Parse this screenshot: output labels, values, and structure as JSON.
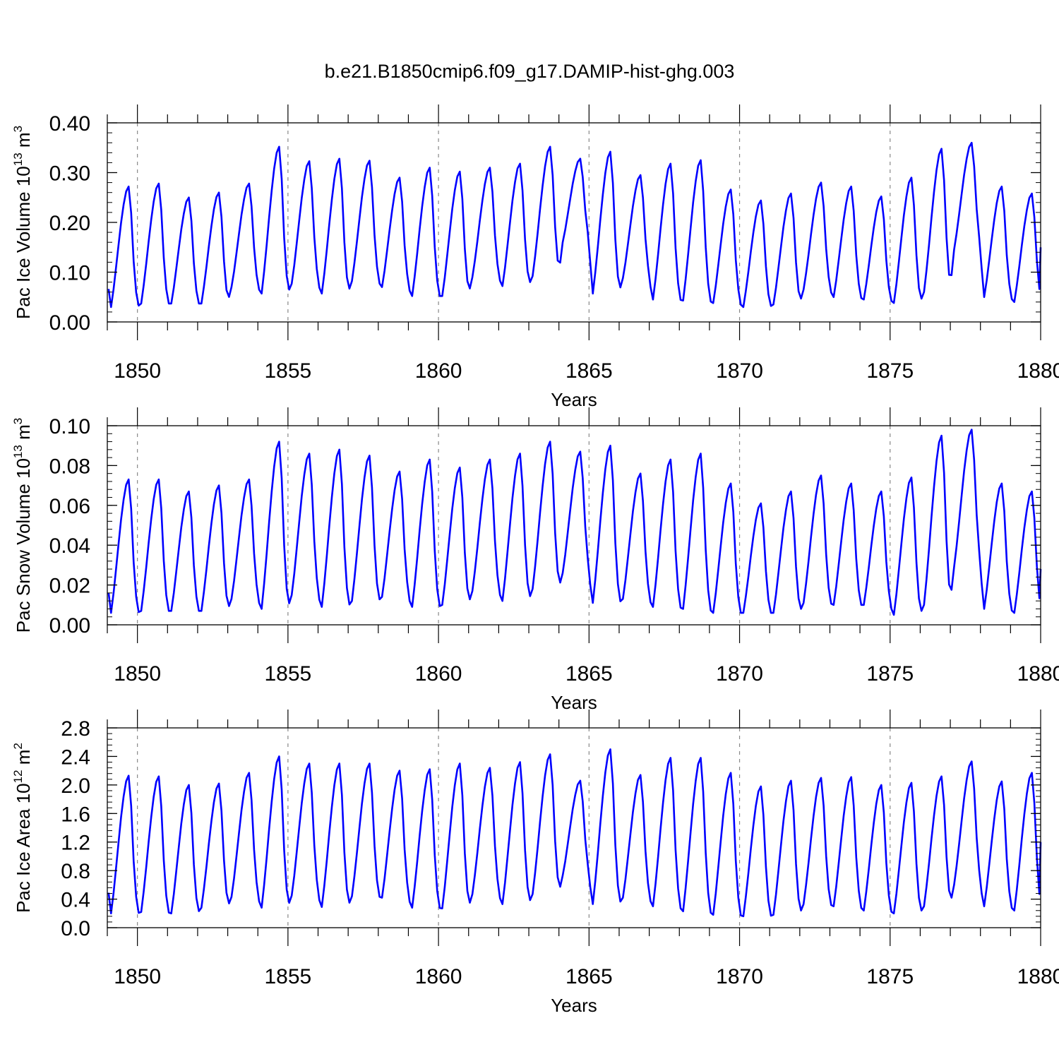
{
  "page": {
    "title": "b.e21.B1850cmip6.f09_g17.DAMIP-hist-ghg.003",
    "line_color": "#0000ff"
  },
  "chart_data": [
    {
      "type": "line",
      "ylabel_main": "Pac Ice Volume 10",
      "ylabel_exp": "13",
      "ylabel_unit": "m",
      "ylabel_unit_exp": "3",
      "xlabel": "Years",
      "xlim": [
        1849.0,
        1880.0
      ],
      "ylim": [
        0.0,
        0.4
      ],
      "yticks": [
        0.0,
        0.1,
        0.2,
        0.3,
        0.4
      ],
      "ytick_labels": [
        "0.00",
        "0.10",
        "0.20",
        "0.30",
        "0.40"
      ],
      "xticks": [
        1850,
        1855,
        1860,
        1865,
        1870,
        1875,
        1880
      ],
      "xtick_labels": [
        "1850",
        "1855",
        "1860",
        "1865",
        "1870",
        "1875",
        "1880"
      ],
      "series": [
        {
          "start_year": 1849.0,
          "peaks": [
            0.272,
            0.278,
            0.25,
            0.26,
            0.278,
            0.352,
            0.323,
            0.328,
            0.324,
            0.29,
            0.31,
            0.302,
            0.31,
            0.318,
            0.352,
            0.328,
            0.342,
            0.295,
            0.318,
            0.325,
            0.266,
            0.244,
            0.258,
            0.28,
            0.272,
            0.252,
            0.29,
            0.348,
            0.36,
            0.272,
            0.258
          ],
          "troughs": [
            0.03,
            0.037,
            0.037,
            0.037,
            0.07,
            0.057,
            0.077,
            0.057,
            0.082,
            0.07,
            0.052,
            0.052,
            0.09,
            0.072,
            0.092,
            0.16,
            0.057,
            0.088,
            0.045,
            0.043,
            0.038,
            0.03,
            0.035,
            0.065,
            0.05,
            0.045,
            0.038,
            0.06,
            0.145,
            0.05,
            0.04
          ],
          "end_value": 0.15
        }
      ]
    },
    {
      "type": "line",
      "ylabel_main": "Pac Snow Volume 10",
      "ylabel_exp": "13",
      "ylabel_unit": "m",
      "ylabel_unit_exp": "3",
      "xlabel": "Years",
      "xlim": [
        1849.0,
        1880.0
      ],
      "ylim": [
        0.0,
        0.1
      ],
      "yticks": [
        0.0,
        0.02,
        0.04,
        0.06,
        0.08,
        0.1
      ],
      "ytick_labels": [
        "0.00",
        "0.02",
        "0.04",
        "0.06",
        "0.08",
        "0.10"
      ],
      "xticks": [
        1850,
        1855,
        1860,
        1865,
        1870,
        1875,
        1880
      ],
      "xtick_labels": [
        "1850",
        "1855",
        "1860",
        "1865",
        "1870",
        "1875",
        "1880"
      ],
      "series": [
        {
          "start_year": 1849.0,
          "peaks": [
            0.073,
            0.073,
            0.067,
            0.07,
            0.073,
            0.092,
            0.086,
            0.088,
            0.085,
            0.077,
            0.083,
            0.079,
            0.083,
            0.086,
            0.092,
            0.087,
            0.09,
            0.076,
            0.083,
            0.086,
            0.071,
            0.061,
            0.067,
            0.075,
            0.071,
            0.067,
            0.074,
            0.095,
            0.098,
            0.071,
            0.067
          ],
          "troughs": [
            0.006,
            0.007,
            0.007,
            0.007,
            0.013,
            0.008,
            0.015,
            0.009,
            0.012,
            0.014,
            0.009,
            0.01,
            0.017,
            0.012,
            0.018,
            0.026,
            0.011,
            0.013,
            0.009,
            0.008,
            0.006,
            0.006,
            0.006,
            0.011,
            0.01,
            0.01,
            0.005,
            0.01,
            0.029,
            0.008,
            0.006
          ],
          "end_value": 0.028
        }
      ]
    },
    {
      "type": "line",
      "ylabel_main": "Pac Ice Area 10",
      "ylabel_exp": "12",
      "ylabel_unit": "m",
      "ylabel_unit_exp": "2",
      "xlabel": "Years",
      "xlim": [
        1849.0,
        1880.0
      ],
      "ylim": [
        0.0,
        2.8
      ],
      "yticks": [
        0.0,
        0.4,
        0.8,
        1.2,
        1.6,
        2.0,
        2.4,
        2.8
      ],
      "ytick_labels": [
        "0.0",
        "0.4",
        "0.8",
        "1.2",
        "1.6",
        "2.0",
        "2.4",
        "2.8"
      ],
      "xticks": [
        1850,
        1855,
        1860,
        1865,
        1870,
        1875,
        1880
      ],
      "xtick_labels": [
        "1850",
        "1855",
        "1860",
        "1865",
        "1870",
        "1875",
        "1880"
      ],
      "series": [
        {
          "start_year": 1849.0,
          "peaks": [
            2.13,
            2.12,
            2.0,
            2.02,
            2.17,
            2.4,
            2.3,
            2.3,
            2.3,
            2.2,
            2.22,
            2.3,
            2.24,
            2.32,
            2.43,
            2.06,
            2.5,
            2.14,
            2.38,
            2.38,
            2.17,
            1.98,
            2.06,
            2.1,
            2.11,
            2.0,
            2.03,
            2.12,
            2.33,
            2.05,
            2.17
          ],
          "troughs": [
            0.2,
            0.22,
            0.2,
            0.28,
            0.43,
            0.28,
            0.45,
            0.29,
            0.44,
            0.42,
            0.28,
            0.27,
            0.47,
            0.33,
            0.47,
            0.73,
            0.33,
            0.42,
            0.3,
            0.23,
            0.18,
            0.16,
            0.18,
            0.33,
            0.3,
            0.24,
            0.2,
            0.3,
            0.6,
            0.3,
            0.24
          ],
          "end_value": 1.2
        }
      ]
    }
  ]
}
